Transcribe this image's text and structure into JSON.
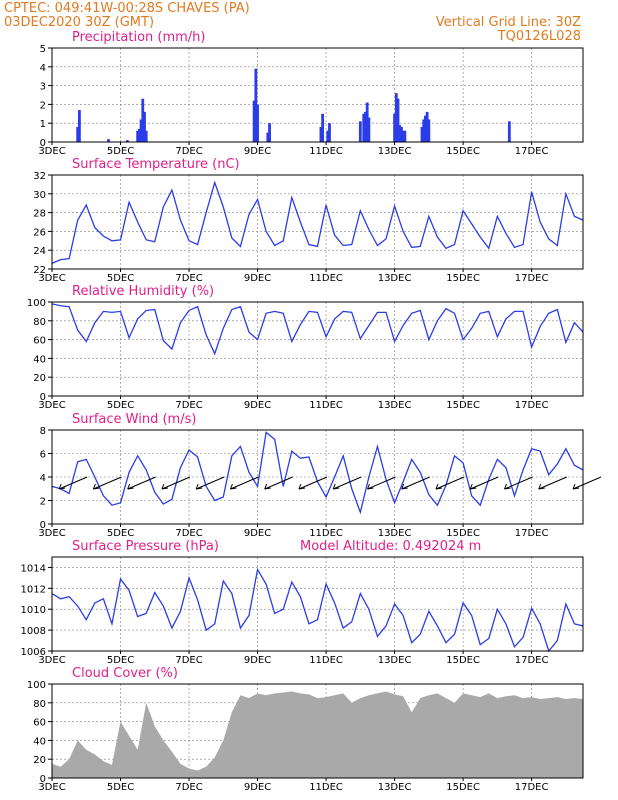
{
  "header": {
    "left_line1": "CPTEC:   049:41W-00:28S   CHAVES (PA)",
    "left_line2": "03DEC2020 30Z (GMT)",
    "right_line1": "Vertical Grid Line: 30Z",
    "right_line2": "TQ0126L028"
  },
  "colors": {
    "header": "#e07a1f",
    "title": "#e0208a",
    "series": "#2a3de8",
    "bars": "#2a3de8",
    "cloud": "#a9a9a9",
    "grid": "#808080"
  },
  "x_labels": [
    "3DEC",
    "5DEC",
    "7DEC",
    "9DEC",
    "11DEC",
    "13DEC",
    "15DEC",
    "17DEC"
  ],
  "x_label_days": [
    0,
    2,
    4,
    6,
    8,
    10,
    12,
    14
  ],
  "x_range_days": [
    0,
    15.5
  ],
  "chart_data": [
    {
      "type": "bar",
      "title": "Precipitation (mm/h)",
      "ylim": [
        0,
        5
      ],
      "yticks": [
        0,
        1,
        2,
        3,
        4,
        5
      ],
      "x_days": [
        0.75,
        0.8,
        1.65,
        2.2,
        2.5,
        2.55,
        2.6,
        2.65,
        2.7,
        2.75,
        5.9,
        5.95,
        6.0,
        6.3,
        6.35,
        7.85,
        7.9,
        8.05,
        8.1,
        9.0,
        9.1,
        9.15,
        9.2,
        9.25,
        10.0,
        10.05,
        10.1,
        10.15,
        10.2,
        10.25,
        10.3,
        10.8,
        10.85,
        10.9,
        10.95,
        11.0,
        13.35
      ],
      "values": [
        0.8,
        1.7,
        0.15,
        0.1,
        0.6,
        0.7,
        1.2,
        2.3,
        1.6,
        0.6,
        2.2,
        3.9,
        2.0,
        0.5,
        1.0,
        0.8,
        1.5,
        0.6,
        1.0,
        1.1,
        1.5,
        1.6,
        2.1,
        1.3,
        1.5,
        2.6,
        2.3,
        0.9,
        0.8,
        0.6,
        0.6,
        0.8,
        1.2,
        1.4,
        1.6,
        1.2,
        1.1
      ]
    },
    {
      "type": "line",
      "title": "Surface Temperature (nC)",
      "ylim": [
        22,
        32
      ],
      "yticks": [
        22,
        24,
        26,
        28,
        30,
        32
      ],
      "x_days": [
        0,
        0.25,
        0.5,
        0.75,
        1.0,
        1.25,
        1.5,
        1.75,
        2.0,
        2.25,
        2.5,
        2.75,
        3.0,
        3.25,
        3.5,
        3.75,
        4.0,
        4.25,
        4.5,
        4.75,
        5.0,
        5.25,
        5.5,
        5.75,
        6.0,
        6.25,
        6.5,
        6.75,
        7.0,
        7.25,
        7.5,
        7.75,
        8.0,
        8.25,
        8.5,
        8.75,
        9.0,
        9.25,
        9.5,
        9.75,
        10.0,
        10.25,
        10.5,
        10.75,
        11.0,
        11.25,
        11.5,
        11.75,
        12.0,
        12.25,
        12.5,
        12.75,
        13.0,
        13.25,
        13.5,
        13.75,
        14.0,
        14.25,
        14.5,
        14.75,
        15.0,
        15.25,
        15.5
      ],
      "values": [
        22.6,
        23.0,
        23.1,
        27.2,
        28.8,
        26.4,
        25.5,
        25.0,
        25.1,
        29.1,
        27.0,
        25.1,
        24.9,
        28.6,
        30.4,
        27.2,
        25.0,
        24.6,
        28.0,
        31.2,
        28.6,
        25.3,
        24.4,
        27.8,
        29.4,
        26.0,
        24.5,
        25.0,
        29.6,
        27.0,
        24.6,
        24.4,
        28.8,
        25.6,
        24.5,
        24.6,
        28.2,
        26.2,
        24.5,
        25.2,
        28.7,
        26.0,
        24.3,
        24.4,
        27.6,
        25.4,
        24.2,
        24.6,
        28.2,
        26.8,
        25.4,
        24.2,
        27.6,
        25.8,
        24.3,
        24.6,
        30.2,
        27.0,
        25.2,
        24.5,
        30.0,
        27.6,
        27.2
      ]
    },
    {
      "type": "line",
      "title": "Relative Humidity (%)",
      "ylim": [
        0,
        100
      ],
      "yticks": [
        0,
        20,
        40,
        60,
        80,
        100
      ],
      "x_days": [
        0,
        0.25,
        0.5,
        0.75,
        1.0,
        1.25,
        1.5,
        1.75,
        2.0,
        2.25,
        2.5,
        2.75,
        3.0,
        3.25,
        3.5,
        3.75,
        4.0,
        4.25,
        4.5,
        4.75,
        5.0,
        5.25,
        5.5,
        5.75,
        6.0,
        6.25,
        6.5,
        6.75,
        7.0,
        7.25,
        7.5,
        7.75,
        8.0,
        8.25,
        8.5,
        8.75,
        9.0,
        9.25,
        9.5,
        9.75,
        10.0,
        10.25,
        10.5,
        10.75,
        11.0,
        11.25,
        11.5,
        11.75,
        12.0,
        12.25,
        12.5,
        12.75,
        13.0,
        13.25,
        13.5,
        13.75,
        14.0,
        14.25,
        14.5,
        14.75,
        15.0,
        15.25,
        15.5
      ],
      "values": [
        98,
        96,
        95,
        70,
        58,
        78,
        90,
        89,
        90,
        62,
        82,
        91,
        92,
        59,
        50,
        78,
        91,
        95,
        65,
        45,
        72,
        92,
        95,
        68,
        60,
        88,
        90,
        88,
        58,
        76,
        90,
        89,
        63,
        82,
        90,
        89,
        61,
        75,
        89,
        89,
        58,
        75,
        88,
        91,
        60,
        80,
        93,
        88,
        60,
        72,
        88,
        90,
        63,
        82,
        90,
        90,
        52,
        74,
        88,
        92,
        57,
        78,
        68
      ]
    },
    {
      "type": "line",
      "title": "Surface Wind (m/s)",
      "ylim": [
        0,
        8
      ],
      "yticks": [
        0,
        2,
        4,
        6,
        8
      ],
      "x_days": [
        0,
        0.25,
        0.5,
        0.75,
        1.0,
        1.25,
        1.5,
        1.75,
        2.0,
        2.25,
        2.5,
        2.75,
        3.0,
        3.25,
        3.5,
        3.75,
        4.0,
        4.25,
        4.5,
        4.75,
        5.0,
        5.25,
        5.5,
        5.75,
        6.0,
        6.25,
        6.5,
        6.75,
        7.0,
        7.25,
        7.5,
        7.75,
        8.0,
        8.25,
        8.5,
        8.75,
        9.0,
        9.25,
        9.5,
        9.75,
        10.0,
        10.25,
        10.5,
        10.75,
        11.0,
        11.25,
        11.5,
        11.75,
        12.0,
        12.25,
        12.5,
        12.75,
        13.0,
        13.25,
        13.5,
        13.75,
        14.0,
        14.25,
        14.5,
        14.75,
        15.0,
        15.25,
        15.5
      ],
      "values": [
        3.2,
        3.0,
        2.6,
        5.3,
        5.5,
        4.0,
        2.4,
        1.6,
        1.8,
        4.4,
        5.8,
        4.6,
        2.7,
        1.7,
        2.1,
        4.8,
        6.3,
        5.7,
        3.2,
        2.0,
        2.3,
        5.8,
        6.6,
        4.4,
        3.2,
        7.8,
        7.2,
        3.2,
        6.2,
        5.6,
        5.7,
        3.6,
        2.3,
        4.0,
        5.8,
        3.0,
        1.0,
        4.0,
        6.6,
        3.8,
        1.8,
        3.6,
        5.5,
        4.4,
        2.5,
        1.6,
        3.3,
        5.8,
        5.2,
        2.4,
        1.6,
        3.8,
        5.5,
        4.8,
        2.4,
        4.6,
        6.4,
        6.2,
        4.2,
        5.1,
        6.4,
        5.0,
        4.6
      ],
      "vector_days": [
        0.5,
        1.5,
        2.5,
        3.5,
        4.5,
        5.5,
        6.5,
        7.5,
        8.5,
        9.5,
        10.5,
        11.5,
        12.5,
        13.5,
        14.5,
        15.5
      ]
    },
    {
      "type": "line",
      "title": "Surface Pressure (hPa)",
      "annotation": "Model Altitude: 0.492024 m",
      "ylim": [
        1006,
        1015
      ],
      "yticks": [
        1006,
        1008,
        1010,
        1012,
        1014
      ],
      "x_days": [
        0,
        0.25,
        0.5,
        0.75,
        1.0,
        1.25,
        1.5,
        1.75,
        2.0,
        2.25,
        2.5,
        2.75,
        3.0,
        3.25,
        3.5,
        3.75,
        4.0,
        4.25,
        4.5,
        4.75,
        5.0,
        5.25,
        5.5,
        5.75,
        6.0,
        6.25,
        6.5,
        6.75,
        7.0,
        7.25,
        7.5,
        7.75,
        8.0,
        8.25,
        8.5,
        8.75,
        9.0,
        9.25,
        9.5,
        9.75,
        10.0,
        10.25,
        10.5,
        10.75,
        11.0,
        11.25,
        11.5,
        11.75,
        12.0,
        12.25,
        12.5,
        12.75,
        13.0,
        13.25,
        13.5,
        13.75,
        14.0,
        14.25,
        14.5,
        14.75,
        15.0,
        15.25,
        15.5
      ],
      "values": [
        1011.5,
        1011.0,
        1011.2,
        1010.3,
        1009.0,
        1010.6,
        1011.0,
        1008.6,
        1012.9,
        1011.8,
        1009.3,
        1009.6,
        1011.6,
        1010.3,
        1008.2,
        1009.8,
        1013.0,
        1010.9,
        1008.0,
        1008.6,
        1012.7,
        1011.5,
        1008.2,
        1009.4,
        1013.8,
        1012.4,
        1009.6,
        1010.0,
        1012.6,
        1011.2,
        1008.6,
        1009.0,
        1012.4,
        1010.6,
        1008.2,
        1008.8,
        1011.5,
        1010.0,
        1007.4,
        1008.4,
        1010.5,
        1009.4,
        1006.8,
        1007.6,
        1009.8,
        1008.4,
        1006.8,
        1007.6,
        1010.6,
        1009.4,
        1006.6,
        1007.2,
        1010.0,
        1008.6,
        1006.4,
        1007.3,
        1010.1,
        1008.6,
        1006.0,
        1007.0,
        1010.5,
        1008.6,
        1008.4
      ]
    },
    {
      "type": "area",
      "title": "Cloud Cover (%)",
      "ylim": [
        0,
        100
      ],
      "yticks": [
        0,
        20,
        40,
        60,
        80,
        100
      ],
      "x_days": [
        0,
        0.25,
        0.5,
        0.75,
        1.0,
        1.25,
        1.5,
        1.75,
        2.0,
        2.25,
        2.5,
        2.75,
        3.0,
        3.25,
        3.5,
        3.75,
        4.0,
        4.25,
        4.5,
        4.75,
        5.0,
        5.25,
        5.5,
        5.75,
        6.0,
        6.25,
        6.5,
        6.75,
        7.0,
        7.25,
        7.5,
        7.75,
        8.0,
        8.25,
        8.5,
        8.75,
        9.0,
        9.25,
        9.5,
        9.75,
        10.0,
        10.25,
        10.5,
        10.75,
        11.0,
        11.25,
        11.5,
        11.75,
        12.0,
        12.25,
        12.5,
        12.75,
        13.0,
        13.25,
        13.5,
        13.75,
        14.0,
        14.25,
        14.5,
        14.75,
        15.0,
        15.25,
        15.5
      ],
      "values": [
        15,
        12,
        20,
        40,
        30,
        25,
        18,
        14,
        60,
        45,
        30,
        80,
        55,
        40,
        28,
        15,
        10,
        8,
        12,
        22,
        40,
        70,
        88,
        85,
        90,
        88,
        90,
        91,
        92,
        90,
        89,
        85,
        86,
        88,
        90,
        80,
        85,
        88,
        90,
        92,
        89,
        87,
        70,
        85,
        88,
        90,
        85,
        80,
        90,
        88,
        86,
        90,
        85,
        87,
        88,
        85,
        86,
        84,
        85,
        86,
        84,
        85,
        84
      ]
    }
  ]
}
